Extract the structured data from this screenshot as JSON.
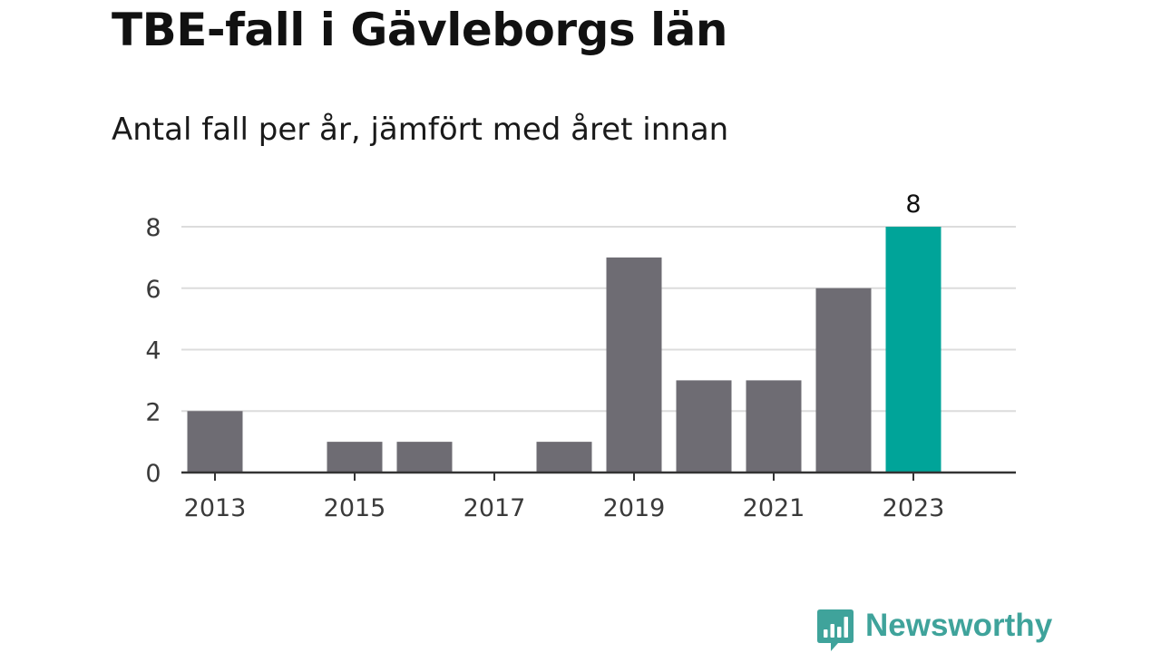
{
  "title": "TBE-fall i Gävleborgs län",
  "subtitle": "Antal fall per år, jämfört med året innan",
  "brand": {
    "name": "Newsworthy",
    "color": "#3fa39b",
    "icon": "newsworthy-logo-icon"
  },
  "chart_data": {
    "type": "bar",
    "categories": [
      "2013",
      "2014",
      "2015",
      "2016",
      "2017",
      "2018",
      "2019",
      "2020",
      "2021",
      "2022",
      "2023"
    ],
    "values": [
      2,
      0,
      1,
      1,
      0,
      1,
      7,
      3,
      3,
      6,
      8
    ],
    "x_tick_labels": [
      "2013",
      "2015",
      "2017",
      "2019",
      "2021",
      "2023"
    ],
    "y_ticks": [
      0,
      2,
      4,
      6,
      8
    ],
    "ylim": [
      0,
      8
    ],
    "xlabel": "",
    "ylabel": "",
    "grid": true,
    "legend": "none",
    "highlight": {
      "category": "2023",
      "label": "8"
    },
    "colors": {
      "bar": "#6e6c73",
      "highlight": "#00a499",
      "grid": "#dcdcdc",
      "axis": "#333333",
      "tick_text": "#3a3a3a"
    }
  }
}
